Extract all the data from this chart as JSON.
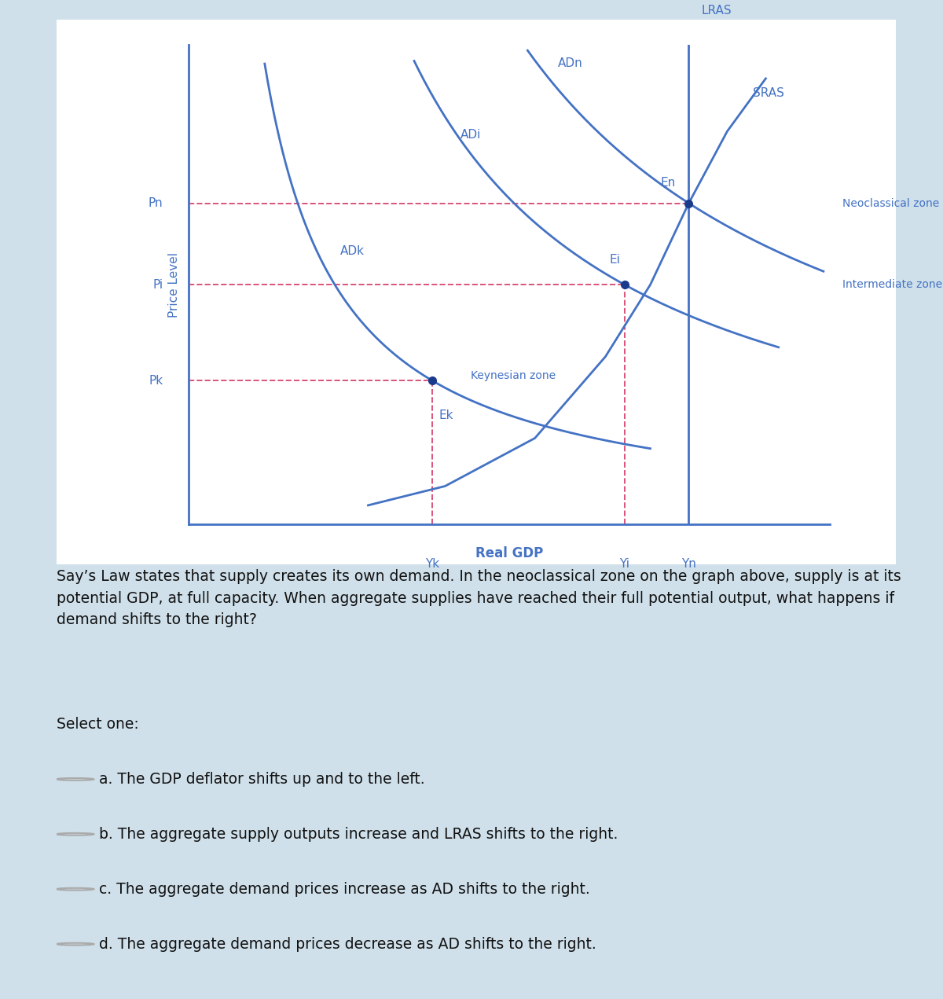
{
  "bg_color": "#cfe0ea",
  "chart_bg": "#ffffff",
  "blue_color": "#4472C4",
  "red_dashed_color": "#d9547a",
  "text_color": "#4472C4",
  "dot_color": "#1a3a8c",
  "figsize": [
    12,
    12.71
  ],
  "xlabel": "Real GDP",
  "ylabel": "Price Level",
  "question_text": "Say’s Law states that supply creates its own demand. In the neoclassical zone on the graph above, supply is at its potential GDP, at full capacity. When aggregate supplies have reached their full potential output, what happens if demand shifts to the right?",
  "select_text": "Select one:",
  "options": [
    "a. The GDP deflator shifts up and to the left.",
    "b. The aggregate supply outputs increase and LRAS shifts to the right.",
    "c. The aggregate demand prices increase as AD shifts to the right.",
    "d. The aggregate demand prices decrease as AD shifts to the right."
  ],
  "Xk": 0.38,
  "Xi": 0.68,
  "Xn": 0.78,
  "Pk": 0.3,
  "Pi": 0.5,
  "Pn": 0.67
}
